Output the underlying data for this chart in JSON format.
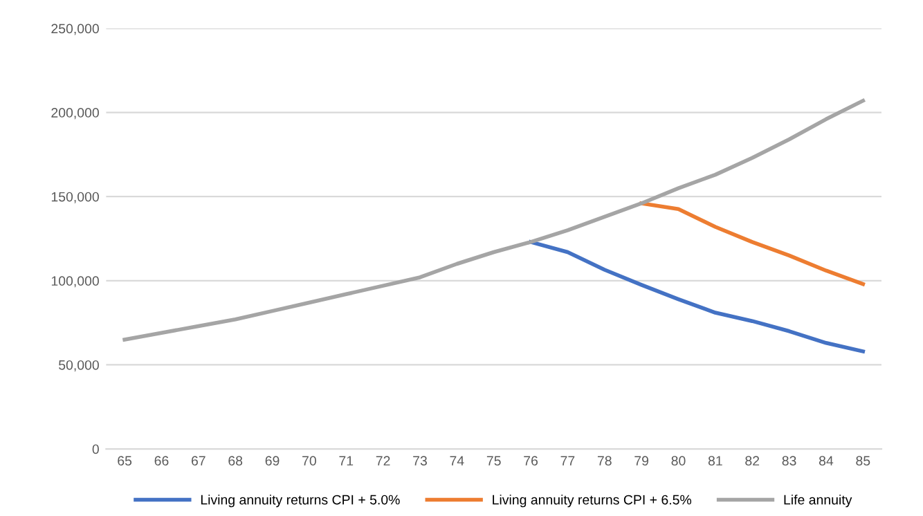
{
  "chart_data": {
    "type": "line",
    "categories": [
      "65",
      "66",
      "67",
      "68",
      "69",
      "70",
      "71",
      "72",
      "73",
      "74",
      "75",
      "76",
      "77",
      "78",
      "79",
      "80",
      "81",
      "82",
      "83",
      "84",
      "85"
    ],
    "series": [
      {
        "name": "Living annuity returns CPI + 5.0%",
        "color": "#4472c4",
        "values": [
          null,
          null,
          null,
          null,
          null,
          null,
          null,
          null,
          null,
          null,
          null,
          123000,
          117000,
          106500,
          97500,
          89000,
          81000,
          76000,
          70000,
          63000,
          58000
        ]
      },
      {
        "name": "Living annuity returns CPI + 6.5%",
        "color": "#ed7d31",
        "values": [
          null,
          null,
          null,
          null,
          null,
          null,
          null,
          null,
          null,
          null,
          null,
          null,
          null,
          null,
          146000,
          142600,
          132000,
          123000,
          115000,
          106000,
          98000
        ]
      },
      {
        "name": "Life annuity",
        "color": "#a5a5a5",
        "values": [
          65000,
          69000,
          73000,
          77000,
          82000,
          87000,
          92000,
          97000,
          102000,
          110000,
          117000,
          123000,
          130000,
          138000,
          146000,
          155000,
          163000,
          173000,
          184000,
          196000,
          207000
        ]
      }
    ],
    "ylim": [
      0,
      250000
    ],
    "yticks": [
      {
        "value": 0,
        "label": "0"
      },
      {
        "value": 50000,
        "label": "50,000"
      },
      {
        "value": 100000,
        "label": "100,000"
      },
      {
        "value": 150000,
        "label": "150,000"
      },
      {
        "value": 200000,
        "label": "200,000"
      },
      {
        "value": 250000,
        "label": "250,000"
      }
    ],
    "grid": "y",
    "legend": "bottom",
    "marker": "none",
    "line_style": "solid"
  }
}
